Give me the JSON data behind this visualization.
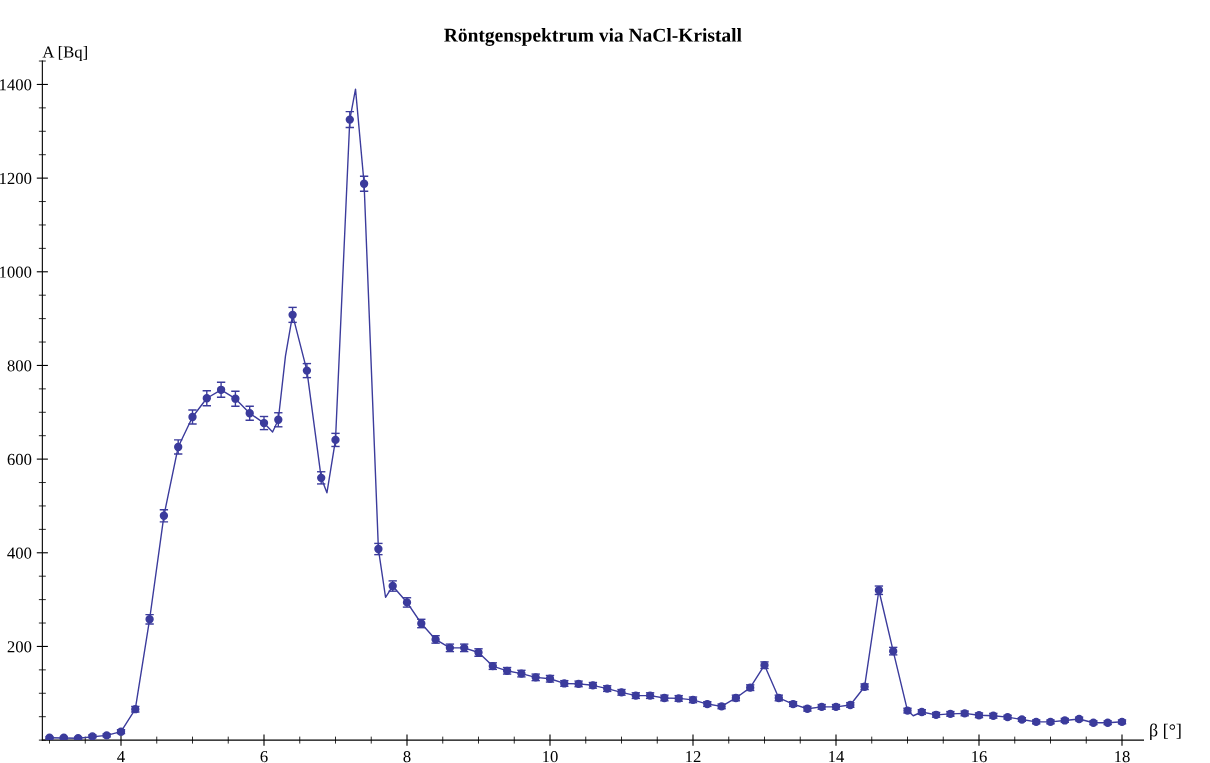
{
  "chart_data": {
    "type": "scatter",
    "title": "Röntgenspektrum via NaCl-Kristall",
    "xlabel": "β [°]",
    "ylabel": "A [Bq]",
    "xlim": [
      2.9,
      18.3
    ],
    "ylim": [
      0,
      1450
    ],
    "xticks": [
      4,
      6,
      8,
      10,
      12,
      14,
      16,
      18
    ],
    "yticks": [
      200,
      400,
      600,
      800,
      1000,
      1200,
      1400
    ],
    "grid": false,
    "line_style": "solid",
    "series": [
      {
        "marker": "circle",
        "color": "#3b3b9c",
        "x": [
          3.0,
          3.2,
          3.4,
          3.6,
          3.8,
          4.0,
          4.2,
          4.4,
          4.6,
          4.8,
          5.0,
          5.2,
          5.4,
          5.6,
          5.8,
          6.0,
          6.2,
          6.4,
          6.6,
          6.8,
          7.0,
          7.2,
          7.4,
          7.6,
          7.8,
          8.0,
          8.2,
          8.4,
          8.6,
          8.8,
          9.0,
          9.2,
          9.4,
          9.6,
          9.8,
          10.0,
          10.2,
          10.4,
          10.6,
          10.8,
          11.0,
          11.2,
          11.4,
          11.6,
          11.8,
          12.0,
          12.2,
          12.4,
          12.6,
          12.8,
          13.0,
          13.2,
          13.4,
          13.6,
          13.8,
          14.0,
          14.2,
          14.4,
          14.6,
          14.8,
          15.0,
          15.2,
          15.4,
          15.6,
          15.8,
          16.0,
          16.2,
          16.4,
          16.6,
          16.8,
          17.0,
          17.2,
          17.4,
          17.6,
          17.8,
          18.0
        ],
        "values": [
          5,
          5,
          4,
          8,
          10,
          18,
          66,
          258,
          479,
          626,
          690,
          730,
          748,
          729,
          698,
          677,
          684,
          908,
          789,
          560,
          641,
          1325,
          1188,
          408,
          329,
          294,
          249,
          215,
          197,
          197,
          187,
          158,
          148,
          142,
          134,
          131,
          121,
          120,
          117,
          110,
          102,
          95,
          95,
          90,
          89,
          86,
          77,
          72,
          90,
          112,
          160,
          90,
          77,
          67,
          71,
          71,
          75,
          114,
          320,
          190,
          63,
          60,
          54,
          56,
          57,
          53,
          52,
          49,
          44,
          39,
          39,
          42,
          45,
          37,
          37,
          39
        ],
        "errors": [
          2,
          2,
          2,
          3,
          3,
          4,
          6,
          10,
          13,
          15,
          15,
          16,
          16,
          16,
          15,
          14,
          15,
          16,
          15,
          13,
          14,
          17,
          16,
          12,
          11,
          10,
          9,
          8,
          8,
          8,
          8,
          7,
          7,
          7,
          7,
          7,
          6,
          6,
          6,
          6,
          6,
          6,
          6,
          6,
          6,
          6,
          5,
          5,
          6,
          6,
          7,
          6,
          5,
          5,
          5,
          5,
          5,
          6,
          9,
          8,
          5,
          5,
          5,
          5,
          5,
          5,
          5,
          4,
          4,
          4,
          4,
          4,
          4,
          4,
          4,
          4
        ]
      },
      {
        "type": "line",
        "color": "#3b3b9c",
        "x": [
          3.0,
          3.4,
          3.8,
          4.0,
          4.2,
          4.4,
          4.6,
          4.8,
          5.0,
          5.2,
          5.4,
          5.6,
          5.8,
          6.0,
          6.12,
          6.2,
          6.3,
          6.4,
          6.6,
          6.8,
          6.88,
          7.0,
          7.2,
          7.28,
          7.4,
          7.6,
          7.7,
          7.8,
          8.0,
          8.2,
          8.4,
          8.6,
          8.8,
          9.0,
          9.2,
          9.4,
          9.6,
          9.8,
          10.0,
          10.2,
          10.4,
          10.6,
          10.8,
          11.0,
          11.2,
          11.4,
          11.6,
          11.8,
          12.0,
          12.2,
          12.4,
          12.6,
          12.8,
          13.0,
          13.2,
          13.4,
          13.6,
          13.8,
          14.0,
          14.2,
          14.4,
          14.6,
          14.8,
          15.0,
          15.08,
          15.2,
          15.4,
          15.6,
          15.8,
          16.0,
          16.2,
          16.4,
          16.6,
          16.8,
          17.0,
          17.2,
          17.4,
          17.6,
          17.8,
          18.0
        ],
        "values": [
          5,
          4,
          10,
          18,
          66,
          258,
          479,
          626,
          690,
          730,
          748,
          729,
          698,
          677,
          658,
          684,
          820,
          908,
          789,
          560,
          528,
          641,
          1325,
          1390,
          1188,
          408,
          305,
          329,
          294,
          249,
          215,
          197,
          197,
          187,
          158,
          148,
          142,
          134,
          131,
          121,
          120,
          117,
          110,
          102,
          95,
          95,
          90,
          89,
          86,
          77,
          72,
          90,
          112,
          160,
          90,
          77,
          67,
          71,
          71,
          75,
          114,
          320,
          190,
          63,
          52,
          60,
          54,
          56,
          57,
          53,
          52,
          49,
          44,
          39,
          39,
          42,
          45,
          37,
          37,
          39
        ]
      }
    ]
  }
}
